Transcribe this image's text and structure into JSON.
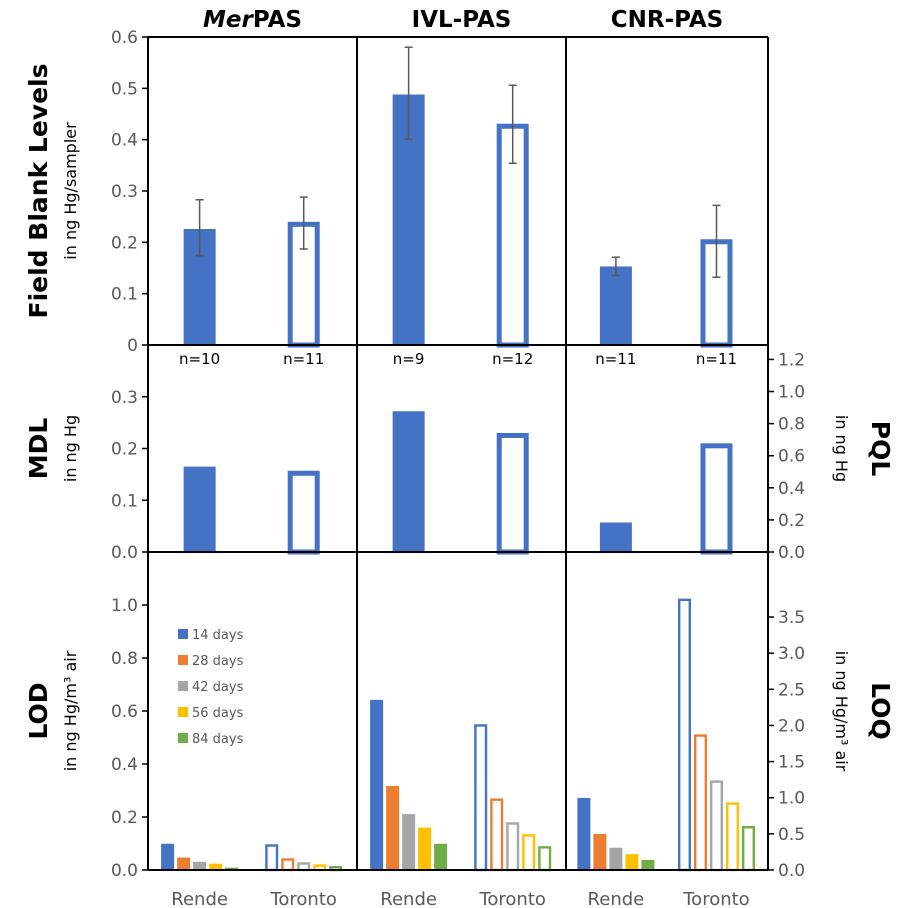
{
  "colors": {
    "14 days": "#4472C4",
    "28 days": "#ED7D31",
    "42 days": "#A5A5A5",
    "56 days": "#FFC000",
    "84 days": "#70AD47",
    "error": "#595959"
  },
  "chart_data": {
    "type": "bar",
    "columns": [
      {
        "title_italic": "Mer",
        "title_rest": "PAS"
      },
      {
        "title_italic": "",
        "title_rest": "IVL-PAS"
      },
      {
        "title_italic": "",
        "title_rest": "CNR-PAS"
      }
    ],
    "categories": [
      "Rende",
      "Toronto"
    ],
    "panels": [
      {
        "name": "field-blank",
        "ylabel": "Field Blank Levels",
        "ylabel_sub": "in ng Hg/sampler",
        "ylim": [
          0,
          0.6
        ],
        "yticks": [
          "0",
          "0.1",
          "0.2",
          "0.3",
          "0.4",
          "0.5",
          "0.6"
        ],
        "values": [
          [
            0.226,
            0.24
          ],
          [
            0.488,
            0.431
          ],
          [
            0.153,
            0.206
          ]
        ],
        "error_low": [
          [
            0.174,
            0.187
          ],
          [
            0.401,
            0.354
          ],
          [
            0.135,
            0.132
          ]
        ],
        "error_high": [
          [
            0.283,
            0.288
          ],
          [
            0.58,
            0.506
          ],
          [
            0.171,
            0.272
          ]
        ],
        "n_labels": [
          [
            "n=10",
            "n=11"
          ],
          [
            "n=9",
            "n=12"
          ],
          [
            "n=11",
            "n=11"
          ]
        ]
      },
      {
        "name": "mdl",
        "ylabel": "MDL",
        "ylabel_sub": "in ng Hg",
        "ylim": [
          0,
          0.4
        ],
        "yticks": [
          "0.0",
          "0.1",
          "0.2",
          "0.3"
        ],
        "right_ylabel": "PQL",
        "right_ylabel_sub": "in ng Hg",
        "right_ylim": [
          0,
          1.29
        ],
        "right_yticks": [
          "0.0",
          "0.2",
          "0.4",
          "0.6",
          "0.8",
          "1.0",
          "1.2"
        ],
        "values": [
          [
            0.165,
            0.157
          ],
          [
            0.272,
            0.23
          ],
          [
            0.057,
            0.21
          ]
        ]
      },
      {
        "name": "lod",
        "ylabel": "LOD",
        "ylabel_sub": "in ng Hg/m³ air",
        "ylim": [
          0,
          1.2
        ],
        "yticks": [
          "0.0",
          "0.2",
          "0.4",
          "0.6",
          "0.8",
          "1.0"
        ],
        "right_ylabel": "LOQ",
        "right_ylabel_sub": "in ng Hg/m³ air",
        "right_ylim": [
          0,
          4.4
        ],
        "right_yticks": [
          "0.0",
          "0.5",
          "1.0",
          "1.5",
          "2.0",
          "2.5",
          "3.0",
          "3.5"
        ],
        "series_names": [
          "14 days",
          "28 days",
          "42 days",
          "56 days",
          "84 days"
        ],
        "values": [
          [
            [
              0.099,
              0.047,
              0.031,
              0.024,
              0.009
            ],
            [
              0.097,
              0.044,
              0.029,
              0.021,
              0.015
            ]
          ],
          [
            [
              0.642,
              0.317,
              0.211,
              0.16,
              0.099
            ],
            [
              0.55,
              0.27,
              0.18,
              0.135,
              0.09
            ]
          ],
          [
            [
              0.272,
              0.136,
              0.084,
              0.06,
              0.038
            ],
            [
              1.024,
              0.512,
              0.338,
              0.255,
              0.166
            ]
          ]
        ]
      }
    ],
    "legend_placement": "left-center of bottom-left panel",
    "note": "Rende = filled bars, Toronto = outlined bars"
  }
}
